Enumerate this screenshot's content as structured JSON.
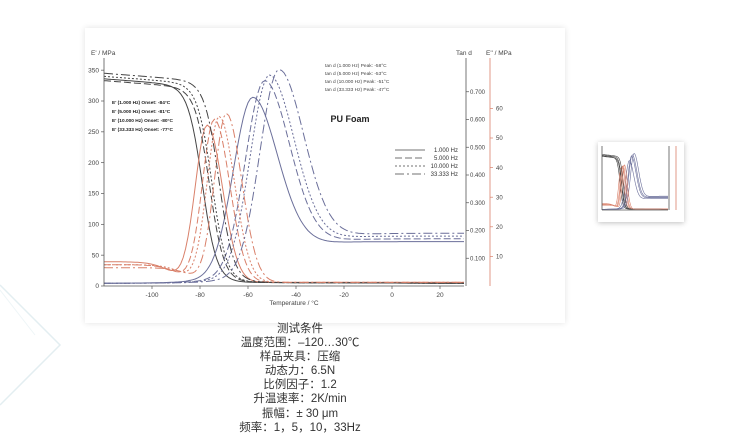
{
  "chart_data": {
    "type": "line",
    "title": "PU Foam",
    "xlabel": "Temperature / °C",
    "ylabel_left": "E' / MPa",
    "ylabel_right_1": "Tan d",
    "ylabel_right_2": "E'' / MPa",
    "xlim": [
      -120,
      30
    ],
    "ylim_left": [
      0,
      360
    ],
    "ylim_tand": [
      0,
      0.8
    ],
    "ylim_eloss": [
      0,
      75
    ],
    "x_ticks": [
      "-100",
      "-80",
      "-60",
      "-40",
      "-20",
      "0",
      "20"
    ],
    "y_ticks_left": [
      "0",
      "50",
      "100",
      "150",
      "200",
      "250",
      "300",
      "350"
    ],
    "y_ticks_tand": [
      "0.100",
      "0.200",
      "0.300",
      "0.400",
      "0.500",
      "0.600",
      "0.700"
    ],
    "y_ticks_eloss": [
      "10",
      "20",
      "30",
      "40",
      "50",
      "60"
    ],
    "legend_placement": "center-right",
    "annotations_left": [
      "E' (1.000 Hz) Onset:  -84°C",
      "E' (5.000 Hz) Onset:  -81°C",
      "E' (10.000 Hz) Onset: -80°C",
      "E' (33.333 Hz) Onset: -77°C"
    ],
    "annotations_right": [
      "tan d (1.000 Hz) Peak:  -58°C",
      "tan d (5.000 Hz) Peak:  -53°C",
      "tan d (10.000 Hz) Peak: -51°C",
      "tan d (33.333 Hz) Peak: -47°C"
    ],
    "series": [
      {
        "name": "1.000 Hz",
        "dash": "",
        "storage_onset": -84,
        "storage_start": 336,
        "tand_peak": -58,
        "tand_peak_value": 0.67,
        "tand_end": 0.15,
        "loss_peak": -77,
        "loss_peak_value": 54,
        "loss_start": 7
      },
      {
        "name": "5.000 Hz",
        "dash": "7,3",
        "storage_start": 333,
        "storage_onset": -81,
        "tand_peak": -53,
        "tand_peak_value": 0.73,
        "tand_end": 0.16,
        "loss_peak": -74,
        "loss_peak_value": 56,
        "loss_start": 6
      },
      {
        "name": "10.000 Hz",
        "dash": "2,2",
        "storage_onset": -80,
        "storage_start": 340,
        "tand_peak": -51,
        "tand_peak_value": 0.75,
        "tand_end": 0.17,
        "loss_peak": -72,
        "loss_peak_value": 57,
        "loss_start": 6
      },
      {
        "name": "33.333 Hz",
        "dash": "9,3,2,3",
        "storage_onset": -77,
        "storage_start": 345,
        "tand_peak": -47,
        "tand_peak_value": 0.77,
        "tand_end": 0.18,
        "loss_peak": -69,
        "loss_peak_value": 58,
        "loss_start": 5
      }
    ],
    "colors": {
      "storage": "#444444",
      "tand": "#6b6f9a",
      "loss": "#d9806a",
      "axis_red": "#d9806a",
      "axis": "#555555"
    }
  },
  "conditions": [
    "测试条件",
    "温度范围：–120…30℃",
    "样品夹具：压缩",
    "动态力：6.5N",
    "比例因子：1.2",
    "升温速率：2K/min",
    "振幅：± 30 μm",
    "频率：1，5，10，33Hz"
  ]
}
